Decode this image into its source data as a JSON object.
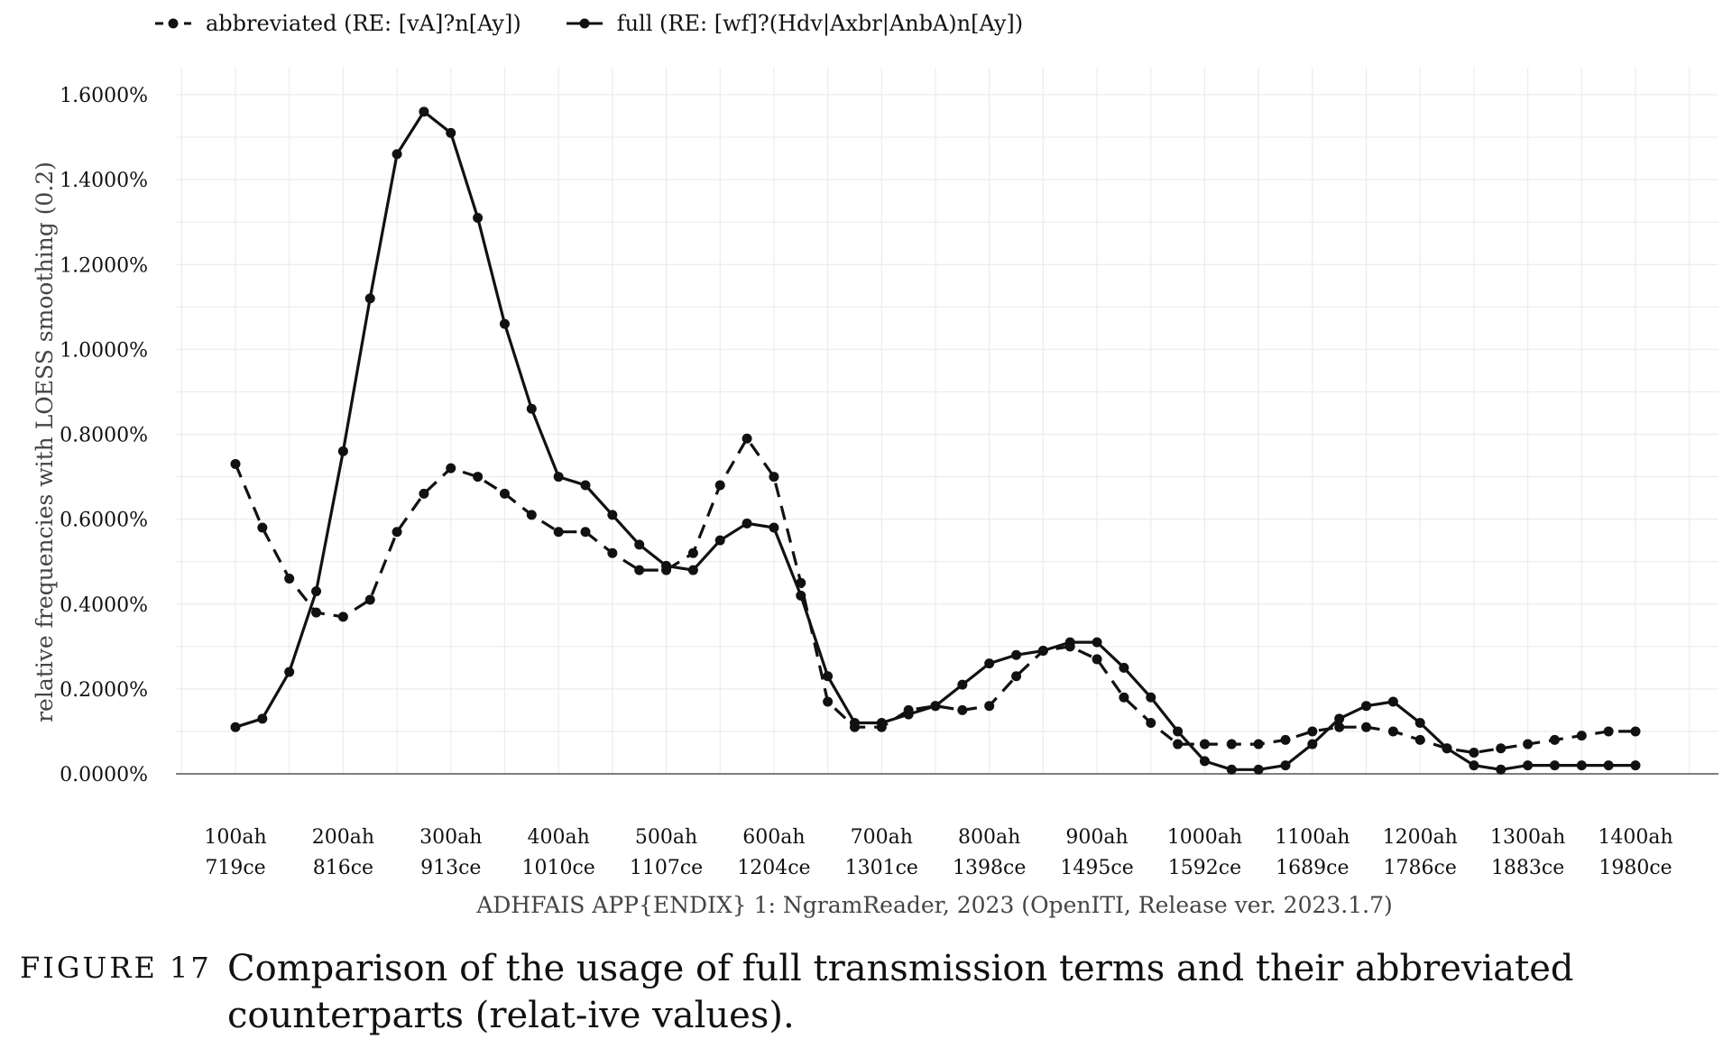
{
  "legend": {
    "abbreviated_label": "abbreviated (RE: [vA]?n[Ay])",
    "full_label": "full (RE: [wf]?(Hdv|Axbr|AnbA)n[Ay])"
  },
  "caption": {
    "label": "FIGURE 17",
    "text": "Comparison of the usage of full transmission terms and their abbreviated counterparts (relat-ive values)."
  },
  "chart_data": {
    "type": "line",
    "ylabel": "relative frequencies with LOESS smoothing (0.2)",
    "xlabel": "ADHFAIS APP{ENDIX} 1: NgramReader, 2023 (OpenITI, Release ver. 2023.1.7)",
    "ylim": [
      0,
      1.6
    ],
    "xlim": [
      100,
      1400
    ],
    "grid": true,
    "legend_position": "top-left",
    "y_ticks": [
      {
        "value": 0.0,
        "label": "0.0000%"
      },
      {
        "value": 0.2,
        "label": "0.2000%"
      },
      {
        "value": 0.4,
        "label": "0.4000%"
      },
      {
        "value": 0.6,
        "label": "0.6000%"
      },
      {
        "value": 0.8,
        "label": "0.8000%"
      },
      {
        "value": 1.0,
        "label": "1.0000%"
      },
      {
        "value": 1.2,
        "label": "1.2000%"
      },
      {
        "value": 1.4,
        "label": "1.4000%"
      },
      {
        "value": 1.6,
        "label": "1.6000%"
      }
    ],
    "x_ticks": [
      {
        "value": 100,
        "label1": "100ah",
        "label2": "719ce"
      },
      {
        "value": 200,
        "label1": "200ah",
        "label2": "816ce"
      },
      {
        "value": 300,
        "label1": "300ah",
        "label2": "913ce"
      },
      {
        "value": 400,
        "label1": "400ah",
        "label2": "1010ce"
      },
      {
        "value": 500,
        "label1": "500ah",
        "label2": "1107ce"
      },
      {
        "value": 600,
        "label1": "600ah",
        "label2": "1204ce"
      },
      {
        "value": 700,
        "label1": "700ah",
        "label2": "1301ce"
      },
      {
        "value": 800,
        "label1": "800ah",
        "label2": "1398ce"
      },
      {
        "value": 900,
        "label1": "900ah",
        "label2": "1495ce"
      },
      {
        "value": 1000,
        "label1": "1000ah",
        "label2": "1592ce"
      },
      {
        "value": 1100,
        "label1": "1100ah",
        "label2": "1689ce"
      },
      {
        "value": 1200,
        "label1": "1200ah",
        "label2": "1786ce"
      },
      {
        "value": 1300,
        "label1": "1300ah",
        "label2": "1883ce"
      },
      {
        "value": 1400,
        "label1": "1400ah",
        "label2": "1980ce"
      }
    ],
    "x": [
      100,
      125,
      150,
      175,
      200,
      225,
      250,
      275,
      300,
      325,
      350,
      375,
      400,
      425,
      450,
      475,
      500,
      525,
      550,
      575,
      600,
      625,
      650,
      675,
      700,
      725,
      750,
      775,
      800,
      825,
      850,
      875,
      900,
      925,
      950,
      975,
      1000,
      1025,
      1050,
      1075,
      1100,
      1125,
      1150,
      1175,
      1200,
      1225,
      1250,
      1275,
      1300,
      1325,
      1350,
      1375,
      1400
    ],
    "series": [
      {
        "name": "abbreviated (RE: [vA]?n[Ay])",
        "style": "dashed",
        "color": "#111111",
        "values": [
          0.73,
          0.58,
          0.46,
          0.38,
          0.37,
          0.41,
          0.57,
          0.66,
          0.72,
          0.7,
          0.66,
          0.61,
          0.57,
          0.57,
          0.52,
          0.48,
          0.48,
          0.52,
          0.68,
          0.79,
          0.7,
          0.45,
          0.17,
          0.11,
          0.11,
          0.15,
          0.16,
          0.15,
          0.16,
          0.23,
          0.29,
          0.3,
          0.27,
          0.18,
          0.12,
          0.07,
          0.07,
          0.07,
          0.07,
          0.08,
          0.1,
          0.11,
          0.11,
          0.1,
          0.08,
          0.06,
          0.05,
          0.06,
          0.07,
          0.08,
          0.09,
          0.1,
          0.1
        ]
      },
      {
        "name": "full (RE: [wf]?(Hdv|Axbr|AnbA)n[Ay])",
        "style": "solid",
        "color": "#111111",
        "values": [
          0.11,
          0.13,
          0.24,
          0.43,
          0.76,
          1.12,
          1.46,
          1.56,
          1.51,
          1.31,
          1.06,
          0.86,
          0.7,
          0.68,
          0.61,
          0.54,
          0.49,
          0.48,
          0.55,
          0.59,
          0.58,
          0.42,
          0.23,
          0.12,
          0.12,
          0.14,
          0.16,
          0.21,
          0.26,
          0.28,
          0.29,
          0.31,
          0.31,
          0.25,
          0.18,
          0.1,
          0.03,
          0.01,
          0.01,
          0.02,
          0.07,
          0.13,
          0.16,
          0.17,
          0.12,
          0.06,
          0.02,
          0.01,
          0.02,
          0.02,
          0.02,
          0.02,
          0.02
        ]
      }
    ]
  }
}
